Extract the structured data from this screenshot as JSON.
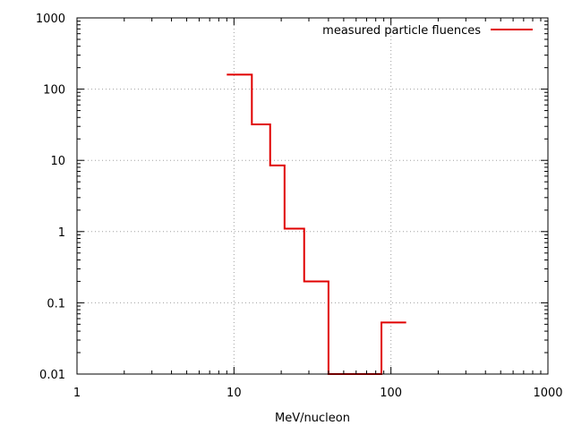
{
  "chart_data": {
    "type": "line",
    "title": "",
    "xlabel": "MeV/nucleon",
    "ylabel": "",
    "x_scale": "log",
    "y_scale": "log",
    "xlim": [
      1,
      1000
    ],
    "ylim": [
      0.01,
      1000
    ],
    "x_ticks": [
      {
        "value": 1,
        "label": "1"
      },
      {
        "value": 10,
        "label": "10"
      },
      {
        "value": 100,
        "label": "100"
      },
      {
        "value": 1000,
        "label": "1000"
      }
    ],
    "y_ticks": [
      {
        "value": 0.01,
        "label": "0.01"
      },
      {
        "value": 0.1,
        "label": "0.1"
      },
      {
        "value": 1,
        "label": "1"
      },
      {
        "value": 10,
        "label": "10"
      },
      {
        "value": 100,
        "label": "100"
      },
      {
        "value": 1000,
        "label": "1000"
      }
    ],
    "grid": true,
    "legend_position": "top-right",
    "series": [
      {
        "name": "measured particle fluences",
        "color": "#e00000",
        "style": "steps",
        "bins": [
          {
            "x_start": 9,
            "x_end": 13,
            "y": 160
          },
          {
            "x_start": 13,
            "x_end": 17,
            "y": 32
          },
          {
            "x_start": 17,
            "x_end": 21,
            "y": 8.5
          },
          {
            "x_start": 21,
            "x_end": 28,
            "y": 1.1
          },
          {
            "x_start": 28,
            "x_end": 40,
            "y": 0.2
          },
          {
            "x_start": 40,
            "x_end": 87,
            "y": 0.01
          },
          {
            "x_start": 87,
            "x_end": 125,
            "y": 0.053
          }
        ]
      }
    ]
  }
}
